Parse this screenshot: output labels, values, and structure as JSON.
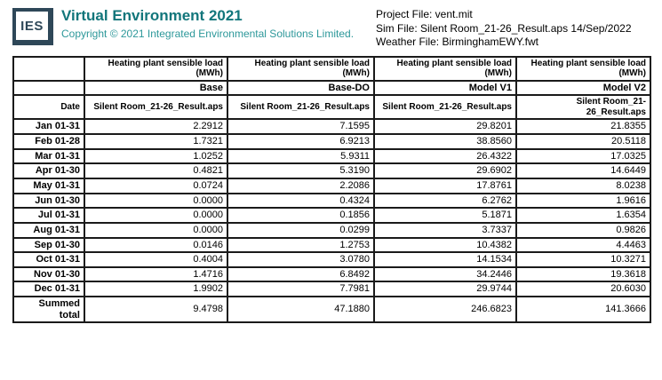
{
  "header": {
    "logo_text": "IES",
    "title": "Virtual Environment 2021",
    "copyright": "Copyright © 2021 Integrated Environmental Solutions Limited.",
    "project_file": "Project File: vent.mit",
    "sim_file": "Sim File: Silent Room_21-26_Result.aps 14/Sep/2022",
    "weather_file": "Weather File: BirminghamEWY.fwt"
  },
  "colors": {
    "brand_teal": "#12767b",
    "copyright_teal": "#2d989a",
    "logo_navy": "#2e4758",
    "table_border": "#1a1a1a"
  },
  "table": {
    "date_header": "Date",
    "columns": [
      {
        "measure": "Heating plant sensible load",
        "unit": "(MWh)",
        "variant": "Base",
        "source": "Silent Room_21-26_Result.aps"
      },
      {
        "measure": "Heating plant sensible load",
        "unit": "(MWh)",
        "variant": "Base-DO",
        "source": "Silent Room_21-26_Result.aps"
      },
      {
        "measure": "Heating plant sensible load",
        "unit": "(MWh)",
        "variant": "Model V1",
        "source": "Silent Room_21-26_Result.aps"
      },
      {
        "measure": "Heating plant sensible load",
        "unit": "(MWh)",
        "variant": "Model V2",
        "source": "Silent Room_21-26_Result.aps"
      }
    ],
    "rows": [
      {
        "label": "Jan 01-31",
        "values": [
          "2.2912",
          "7.1595",
          "29.8201",
          "21.8355"
        ]
      },
      {
        "label": "Feb 01-28",
        "values": [
          "1.7321",
          "6.9213",
          "38.8560",
          "20.5118"
        ]
      },
      {
        "label": "Mar 01-31",
        "values": [
          "1.0252",
          "5.9311",
          "26.4322",
          "17.0325"
        ]
      },
      {
        "label": "Apr 01-30",
        "values": [
          "0.4821",
          "5.3190",
          "29.6902",
          "14.6449"
        ]
      },
      {
        "label": "May 01-31",
        "values": [
          "0.0724",
          "2.2086",
          "17.8761",
          "8.0238"
        ]
      },
      {
        "label": "Jun 01-30",
        "values": [
          "0.0000",
          "0.4324",
          "6.2762",
          "1.9616"
        ]
      },
      {
        "label": "Jul 01-31",
        "values": [
          "0.0000",
          "0.1856",
          "5.1871",
          "1.6354"
        ]
      },
      {
        "label": "Aug 01-31",
        "values": [
          "0.0000",
          "0.0299",
          "3.7337",
          "0.9826"
        ]
      },
      {
        "label": "Sep 01-30",
        "values": [
          "0.0146",
          "1.2753",
          "10.4382",
          "4.4463"
        ]
      },
      {
        "label": "Oct 01-31",
        "values": [
          "0.4004",
          "3.0780",
          "14.1534",
          "10.3271"
        ]
      },
      {
        "label": "Nov 01-30",
        "values": [
          "1.4716",
          "6.8492",
          "34.2446",
          "19.3618"
        ]
      },
      {
        "label": "Dec 01-31",
        "values": [
          "1.9902",
          "7.7981",
          "29.9744",
          "20.6030"
        ]
      }
    ],
    "summary": {
      "label": "Summed total",
      "values": [
        "9.4798",
        "47.1880",
        "246.6823",
        "141.3666"
      ]
    }
  }
}
